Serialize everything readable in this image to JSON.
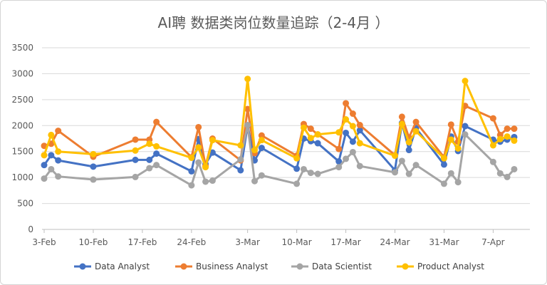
{
  "chart_data": {
    "type": "line",
    "title": "AI聘 数据类岗位数量追踪（2-4月 ）",
    "xlabel": "",
    "ylabel": "",
    "ylim": [
      0,
      3500
    ],
    "yticks": [
      0,
      500,
      1000,
      1500,
      2000,
      2500,
      3000,
      3500
    ],
    "xticks": [
      "3-Feb",
      "10-Feb",
      "17-Feb",
      "24-Feb",
      "3-Mar",
      "10-Mar",
      "17-Mar",
      "24-Mar",
      "31-Mar",
      "7-Apr"
    ],
    "x_start": "2020-02-03",
    "grid": "horizontal",
    "legend_position": "bottom",
    "series": [
      {
        "name": "Data Analyst",
        "color": "#4472C4",
        "x": [
          "3-Feb",
          "4-Feb",
          "5-Feb",
          "10-Feb",
          "16-Feb",
          "18-Feb",
          "19-Feb",
          "24-Feb",
          "25-Feb",
          "26-Feb",
          "27-Feb",
          "2-Mar",
          "3-Mar",
          "4-Mar",
          "5-Mar",
          "10-Mar",
          "11-Mar",
          "12-Mar",
          "13-Mar",
          "16-Mar",
          "17-Mar",
          "18-Mar",
          "19-Mar",
          "24-Mar",
          "25-Mar",
          "26-Mar",
          "27-Mar",
          "31-Mar",
          "1-Apr",
          "2-Apr",
          "3-Apr",
          "7-Apr",
          "8-Apr",
          "9-Apr",
          "10-Apr"
        ],
        "values": [
          1240,
          1430,
          1330,
          1210,
          1340,
          1340,
          1460,
          1120,
          1740,
          1260,
          1480,
          1140,
          2000,
          1330,
          1570,
          1170,
          1750,
          1700,
          1660,
          1310,
          1860,
          1690,
          1910,
          1140,
          2050,
          1530,
          1950,
          1250,
          1790,
          1510,
          1990,
          1730,
          1690,
          1730,
          1780
        ]
      },
      {
        "name": "Business Analyst",
        "color": "#ED7D31",
        "x": [
          "3-Feb",
          "4-Feb",
          "5-Feb",
          "10-Feb",
          "16-Feb",
          "18-Feb",
          "19-Feb",
          "24-Feb",
          "25-Feb",
          "26-Feb",
          "27-Feb",
          "2-Mar",
          "3-Mar",
          "4-Mar",
          "5-Mar",
          "10-Mar",
          "11-Mar",
          "12-Mar",
          "13-Mar",
          "16-Mar",
          "17-Mar",
          "18-Mar",
          "19-Mar",
          "24-Mar",
          "25-Mar",
          "26-Mar",
          "27-Mar",
          "31-Mar",
          "1-Apr",
          "2-Apr",
          "3-Apr",
          "7-Apr",
          "8-Apr",
          "9-Apr",
          "10-Apr"
        ],
        "values": [
          1610,
          1650,
          1900,
          1400,
          1730,
          1730,
          2070,
          1390,
          1970,
          1220,
          1750,
          1330,
          2320,
          1470,
          1810,
          1420,
          2030,
          1940,
          1830,
          1550,
          2430,
          2230,
          2010,
          1430,
          2170,
          1770,
          2070,
          1390,
          2020,
          1690,
          2380,
          2140,
          1820,
          1940,
          1940
        ]
      },
      {
        "name": "Data Scientist",
        "color": "#A5A5A5",
        "x": [
          "3-Feb",
          "4-Feb",
          "5-Feb",
          "10-Feb",
          "16-Feb",
          "18-Feb",
          "19-Feb",
          "24-Feb",
          "25-Feb",
          "26-Feb",
          "27-Feb",
          "2-Mar",
          "3-Mar",
          "4-Mar",
          "5-Mar",
          "10-Mar",
          "11-Mar",
          "12-Mar",
          "13-Mar",
          "16-Mar",
          "17-Mar",
          "18-Mar",
          "19-Mar",
          "24-Mar",
          "25-Mar",
          "26-Mar",
          "27-Mar",
          "31-Mar",
          "1-Apr",
          "2-Apr",
          "3-Apr",
          "7-Apr",
          "8-Apr",
          "9-Apr",
          "10-Apr"
        ],
        "values": [
          980,
          1160,
          1020,
          960,
          1010,
          1180,
          1240,
          850,
          1290,
          920,
          940,
          1350,
          2010,
          930,
          1040,
          880,
          1160,
          1090,
          1070,
          1200,
          1360,
          1490,
          1220,
          1100,
          1320,
          1070,
          1240,
          880,
          1080,
          910,
          1830,
          1300,
          1080,
          1010,
          1160
        ]
      },
      {
        "name": "Product Analyst",
        "color": "#FFC000",
        "x": [
          "3-Feb",
          "4-Feb",
          "5-Feb",
          "10-Feb",
          "16-Feb",
          "18-Feb",
          "19-Feb",
          "24-Feb",
          "25-Feb",
          "26-Feb",
          "27-Feb",
          "2-Mar",
          "3-Mar",
          "4-Mar",
          "5-Mar",
          "10-Mar",
          "11-Mar",
          "12-Mar",
          "13-Mar",
          "16-Mar",
          "17-Mar",
          "18-Mar",
          "19-Mar",
          "24-Mar",
          "25-Mar",
          "26-Mar",
          "27-Mar",
          "31-Mar",
          "1-Apr",
          "2-Apr",
          "3-Apr",
          "7-Apr",
          "8-Apr",
          "9-Apr",
          "10-Apr"
        ],
        "values": [
          1430,
          1820,
          1500,
          1450,
          1520,
          1650,
          1600,
          1380,
          1580,
          1200,
          1720,
          1620,
          2900,
          1530,
          1720,
          1370,
          1960,
          1760,
          1830,
          1870,
          2120,
          1990,
          1660,
          1420,
          2030,
          1680,
          1890,
          1370,
          1730,
          1560,
          2860,
          1620,
          1740,
          1790,
          1710
        ]
      }
    ]
  }
}
